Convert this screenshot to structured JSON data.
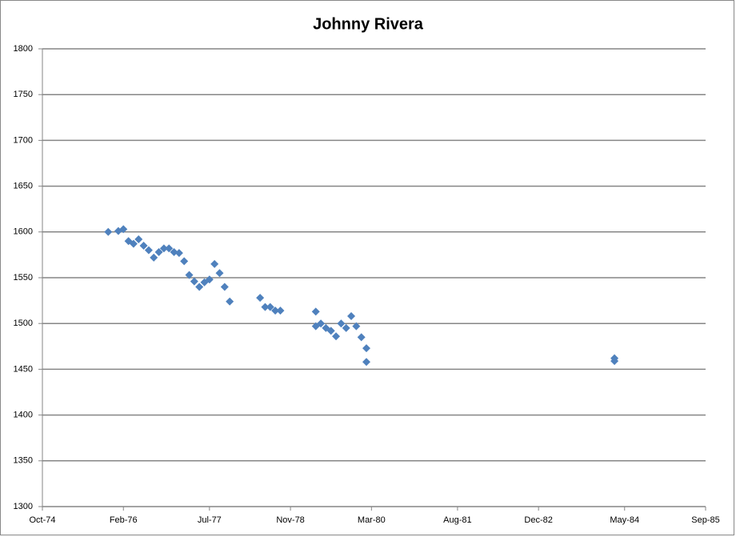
{
  "chart_data": {
    "type": "scatter",
    "title": "Johnny Rivera",
    "x": [
      "1975-11",
      "1976-01",
      "1976-02",
      "1976-03",
      "1976-04",
      "1976-05",
      "1976-06",
      "1976-07",
      "1976-08",
      "1976-09",
      "1976-10",
      "1976-11",
      "1976-12",
      "1977-01",
      "1977-02",
      "1977-03",
      "1977-04",
      "1977-05",
      "1977-06",
      "1977-07",
      "1977-08",
      "1977-09",
      "1977-10",
      "1977-11",
      "1978-05",
      "1978-06",
      "1978-07",
      "1978-08",
      "1978-09",
      "1979-04",
      "1979-04",
      "1979-05",
      "1979-06",
      "1979-07",
      "1979-08",
      "1979-09",
      "1979-10",
      "1979-11",
      "1979-12",
      "1980-01",
      "1980-02",
      "1980-02",
      "1984-03",
      "1984-03"
    ],
    "values": [
      1600,
      1601,
      1603,
      1590,
      1587,
      1592,
      1585,
      1580,
      1572,
      1578,
      1582,
      1582,
      1578,
      1577,
      1568,
      1553,
      1546,
      1540,
      1545,
      1548,
      1565,
      1555,
      1540,
      1524,
      1528,
      1518,
      1518,
      1514,
      1514,
      1513,
      1497,
      1500,
      1495,
      1492,
      1486,
      1500,
      1495,
      1508,
      1497,
      1485,
      1473,
      1458,
      1462,
      1459
    ],
    "color": "#4f81bd",
    "xlim": [
      "1974-10",
      "1985-09"
    ],
    "xticks": [
      {
        "value": "1974-10",
        "label": "Oct-74"
      },
      {
        "value": "1976-02",
        "label": "Feb-76"
      },
      {
        "value": "1977-07",
        "label": "Jul-77"
      },
      {
        "value": "1978-11",
        "label": "Nov-78"
      },
      {
        "value": "1980-03",
        "label": "Mar-80"
      },
      {
        "value": "1981-08",
        "label": "Aug-81"
      },
      {
        "value": "1982-12",
        "label": "Dec-82"
      },
      {
        "value": "1984-05",
        "label": "May-84"
      },
      {
        "value": "1985-09",
        "label": "Sep-85"
      }
    ],
    "ylim": [
      1300,
      1800
    ],
    "yticks": [
      1300,
      1350,
      1400,
      1450,
      1500,
      1550,
      1600,
      1650,
      1700,
      1750,
      1800
    ],
    "grid": true
  }
}
